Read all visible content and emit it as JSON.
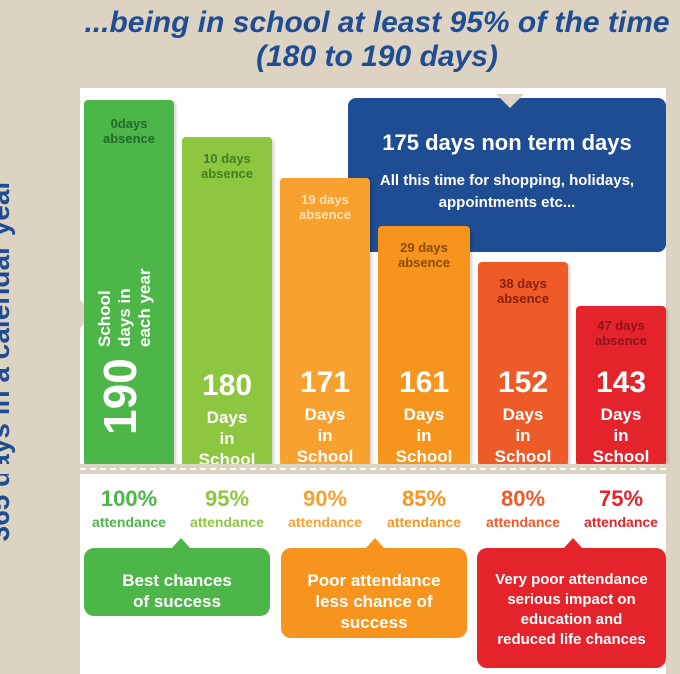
{
  "headline": "...being in school at least 95% of the time (180 to 190 days)",
  "side_title": "365 days in a calendar year",
  "bars": [
    {
      "absence": "0days absence",
      "number": "190",
      "days_label": "School days in each year",
      "days_in_school": 190,
      "color": "#4cb648"
    },
    {
      "absence": "10 days absence",
      "number": "180",
      "days_label": "Days in School",
      "days_in_school": 180,
      "color": "#8dc63f"
    },
    {
      "absence": "19 days absence",
      "number": "171",
      "days_label": "Days in School",
      "days_in_school": 171,
      "color": "#f9a12e"
    },
    {
      "absence": "29 days absence",
      "number": "161",
      "days_label": "Days in School",
      "days_in_school": 161,
      "color": "#f7941d"
    },
    {
      "absence": "38 days absence",
      "number": "152",
      "days_label": "Days in School",
      "days_in_school": 152,
      "color": "#ef5a29"
    },
    {
      "absence": "47 days absence",
      "number": "143",
      "days_label": "Days in School",
      "days_in_school": 143,
      "color": "#e5232b"
    }
  ],
  "callout": {
    "title": "175 days non term days",
    "body": "All this time for shopping, holidays, appointments etc..."
  },
  "attendance": [
    {
      "percent": "100%",
      "label": "attendance",
      "color": "#4cb648"
    },
    {
      "percent": "95%",
      "label": "attendance",
      "color": "#8dc63f"
    },
    {
      "percent": "90%",
      "label": "attendance",
      "color": "#f9a12e"
    },
    {
      "percent": "85%",
      "label": "attendance",
      "color": "#f7941d"
    },
    {
      "percent": "80%",
      "label": "attendance",
      "color": "#ef5a29"
    },
    {
      "percent": "75%",
      "label": "attendance",
      "color": "#e5232b"
    }
  ],
  "outcomes": [
    {
      "text": "Best chances of success",
      "color": "#4cb648"
    },
    {
      "text": "Poor attendance less chance of success",
      "color": "#f7941d"
    },
    {
      "text": "Very poor attendance serious impact on education and reduced life chances",
      "color": "#e5232b"
    }
  ],
  "colors": {
    "navy": "#1f4d93",
    "beige": "#ddd3c2"
  }
}
